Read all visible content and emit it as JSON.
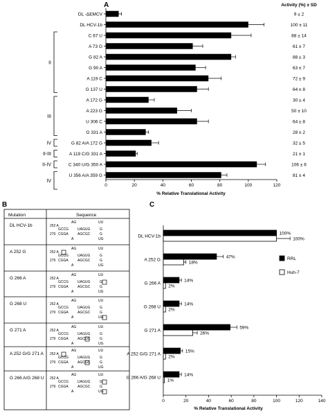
{
  "panel_a": {
    "letter": "A",
    "header_right": "Activity (%) ± SD",
    "xlabel": "% Relative Translational Activity",
    "group_labels": [
      {
        "label": "II",
        "from": 2,
        "to": 7
      },
      {
        "label": "III",
        "from": 8,
        "to": 11
      },
      {
        "label": "IV",
        "from": 12,
        "to": 12
      },
      {
        "label": "II-III",
        "from": 13,
        "to": 13
      },
      {
        "label": "II-IV",
        "from": 14,
        "to": 14
      },
      {
        "label": "IV",
        "from": 15,
        "to": 16
      }
    ]
  },
  "panel_b": {
    "letter": "B",
    "col_mutation": "Mutation",
    "col_sequence": "Sequence",
    "rows": [
      {
        "mutation": "DL HCV-1b",
        "box": null
      },
      {
        "mutation": "A 252 G",
        "box": "252"
      },
      {
        "mutation": "G 266 A",
        "box": "266"
      },
      {
        "mutation": "G 268 U",
        "box": "268"
      },
      {
        "mutation": "G 271 A",
        "box": "271"
      },
      {
        "mutation": "A 252 G/G 271 A",
        "box": "252+271"
      },
      {
        "mutation": "G 266 A/G 268 U",
        "box": "266+268"
      }
    ],
    "seq_text": {
      "n252": "252 A",
      "n279": "279",
      "l1": "AG",
      "l1b": "UU",
      "l2": "GCCG",
      "l2b": "UAGUG",
      "l2c": "G",
      "l3": "CGGA",
      "l3b": "AGCGC",
      "l3c": "G",
      "l4": "A",
      "l4b": "UG"
    }
  },
  "panel_c": {
    "letter": "C",
    "xlabel": "% Relative Translational Activity",
    "legend": [
      {
        "name": "RRL",
        "color": "#000000"
      },
      {
        "name": "Huh-7",
        "color": "#ffffff"
      }
    ]
  },
  "chart_data": [
    {
      "type": "bar",
      "orientation": "horizontal",
      "title": "",
      "xlabel": "% Relative Translational Activity",
      "xlim": [
        0,
        120
      ],
      "xticks": [
        0,
        20,
        40,
        60,
        80,
        100,
        120
      ],
      "categories": [
        "DL -ΔEMCV",
        "DL HCV-1b",
        "C 67 U",
        "A 73 G",
        "G 82 A",
        "G 90 A",
        "A 119 C",
        "G 137 U",
        "A 172 G",
        "A 223 G",
        "U 306 C",
        "G 331 A",
        "G 82 A/A 172 G",
        "A 119 C/G 331 A",
        "C 340 U/G 350 A",
        "U 356 A/A 359 G"
      ],
      "values": [
        9,
        100,
        88,
        61,
        88,
        63,
        72,
        64,
        30,
        50,
        64,
        28,
        32,
        21,
        106,
        81
      ],
      "sd": [
        2,
        11,
        14,
        7,
        3,
        7,
        9,
        8,
        4,
        10,
        8,
        2,
        5,
        1,
        6,
        4
      ],
      "value_labels": [
        "9 ± 2",
        "100 ± 11",
        "88 ± 14",
        "61 ± 7",
        "88 ± 3",
        "63 ± 7",
        "72 ± 9",
        "64 ± 8",
        "30 ± 4",
        "50 ± 10",
        "64 ± 8",
        "28 ± 2",
        "32 ± 5",
        "21 ± 1",
        "106 ± 6",
        "81 ± 4"
      ]
    },
    {
      "type": "bar",
      "orientation": "horizontal",
      "title": "",
      "xlabel": "% Relative Translational Activity",
      "xlim": [
        0,
        140
      ],
      "xticks": [
        0,
        20,
        40,
        60,
        80,
        100,
        120,
        140
      ],
      "categories": [
        "DL HCV-1b",
        "A 252 G",
        "G 266 A",
        "G 268 U",
        "G 271 A",
        "A 252 G/G 271 A",
        "G 266 A/G 268 U"
      ],
      "legend_position": "right",
      "series": [
        {
          "name": "RRL",
          "color": "#000000",
          "values": [
            100,
            47,
            14,
            14,
            59,
            15,
            14
          ],
          "sd": [
            0,
            6,
            2,
            2,
            6,
            2,
            2
          ],
          "labels": [
            "100%",
            "47%",
            "14%",
            "14%",
            "59%",
            "15%",
            "14%"
          ]
        },
        {
          "name": "Huh-7",
          "color": "#ffffff",
          "values": [
            100,
            18,
            2,
            2,
            26,
            2,
            1
          ],
          "sd": [
            12,
            2,
            0,
            0,
            4,
            0,
            0
          ],
          "labels": [
            "100%",
            "18%",
            "2%",
            "2%",
            "26%",
            "2%",
            "1%"
          ]
        }
      ]
    }
  ]
}
